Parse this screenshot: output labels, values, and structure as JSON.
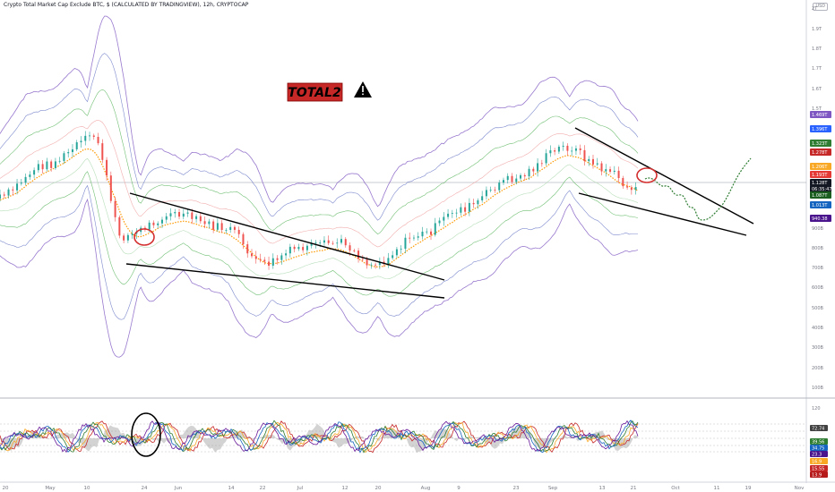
{
  "header": {
    "title": "Crypto Total Market Cap Exclude BTC, $ (CALCULATED BY TRADINGVIEW), 12h, CRYPTOCAP",
    "currency": "USD"
  },
  "colors": {
    "up": "#26a69a",
    "down": "#ef5350",
    "band_outer": "#7e57c2",
    "band_mid": "#4caf50",
    "band_inner": "#ff9800",
    "trendline": "#000000",
    "projection": "#2e7d32",
    "circle": "#d32f2f",
    "label_bg": "#c62828",
    "label_text": "#000000"
  },
  "annotations": {
    "label": "TOTAL2",
    "warning_icon": "warning-icon"
  },
  "price_axis": {
    "ticks": [
      "2T",
      "1.9T",
      "1.8T",
      "1.7T",
      "1.6T",
      "1.5T",
      "900B",
      "800B",
      "700B",
      "600B",
      "500B",
      "400B",
      "300B",
      "200B",
      "100B"
    ],
    "badges": [
      {
        "text": "1.469T",
        "color": "#7e57c2"
      },
      {
        "text": "1.396T",
        "color": "#2962ff"
      },
      {
        "text": "1.323T",
        "color": "#2e7d32"
      },
      {
        "text": "1.278T",
        "color": "#c62828"
      },
      {
        "text": "1.206T",
        "color": "#f9a825"
      },
      {
        "text": "1.193T",
        "color": "#e53935"
      },
      {
        "text": "1.128T",
        "color": "#131722"
      },
      {
        "text": "06:35:47",
        "color": "#131722"
      },
      {
        "text": "1.087T",
        "color": "#1b5e20"
      },
      {
        "text": "1.013T",
        "color": "#1565c0"
      },
      {
        "text": "940.38",
        "color": "#4a148c"
      }
    ]
  },
  "osc_axis": {
    "ticks": [
      "120"
    ],
    "badges": [
      {
        "text": "72.74",
        "color": "#424242"
      },
      {
        "text": "39.56",
        "color": "#2e7d32"
      },
      {
        "text": "34.75",
        "color": "#1565c0"
      },
      {
        "text": "23.3",
        "color": "#4a148c"
      },
      {
        "text": "16.9",
        "color": "#f9a825"
      },
      {
        "text": "15.55",
        "color": "#c62828"
      },
      {
        "text": "13.9",
        "color": "#b71c1c"
      }
    ]
  },
  "time_axis": {
    "labels": [
      "20",
      "May",
      "10",
      "24",
      "Jun",
      "14",
      "22",
      "Jul",
      "12",
      "20",
      "Aug",
      "9",
      "23",
      "Sep",
      "13",
      "21",
      "Oct",
      "11",
      "19",
      "Nov"
    ]
  },
  "chart_data": {
    "type": "line",
    "title": "Crypto Total Market Cap Exclude BTC, $ (CALCULATED BY TRADINGVIEW), 12h, CRYPTOCAP",
    "xlabel": "",
    "ylabel": "",
    "x": [
      "Apr 20",
      "May 1",
      "May 10",
      "May 24",
      "Jun 1",
      "Jun 14",
      "Jun 22",
      "Jul 1",
      "Jul 12",
      "Jul 20",
      "Aug 1",
      "Aug 9",
      "Aug 23",
      "Sep 1",
      "Sep 13",
      "Sep 21"
    ],
    "series": [
      {
        "values": [
          1.05,
          1.22,
          1.36,
          0.86,
          0.97,
          0.9,
          0.72,
          0.8,
          0.83,
          0.72,
          0.87,
          1.0,
          1.15,
          1.31,
          1.2,
          1.09
        ]
      }
    ],
    "ylim": [
      0.1,
      2.0
    ],
    "last_value": "1.128T",
    "grid": false,
    "legend": "none"
  }
}
